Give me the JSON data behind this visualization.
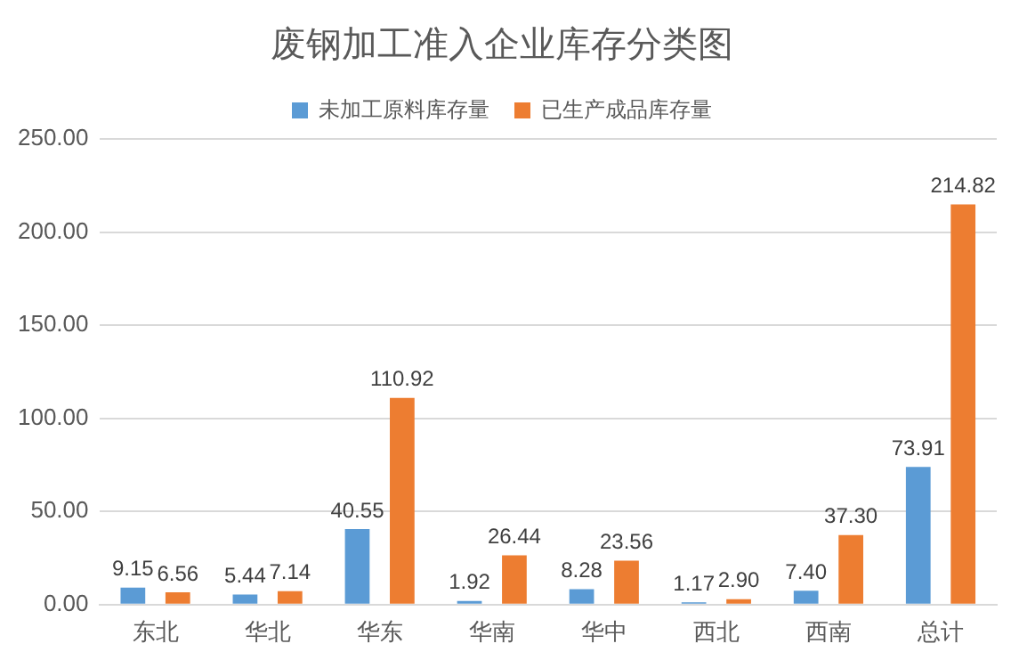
{
  "chart_data": {
    "type": "bar",
    "title": "废钢加工准入企业库存分类图",
    "categories": [
      "东北",
      "华北",
      "华东",
      "华南",
      "华中",
      "西北",
      "西南",
      "总计"
    ],
    "series": [
      {
        "name": "未加工原料库存量",
        "color": "#5b9bd5",
        "values": [
          9.15,
          5.44,
          40.55,
          1.92,
          8.28,
          1.17,
          7.4,
          73.91
        ],
        "value_labels": [
          "9.15",
          "5.44",
          "40.55",
          "1.92",
          "8.28",
          "1.17",
          "7.40",
          "73.91"
        ]
      },
      {
        "name": "已生产成品库存量",
        "color": "#ed7d31",
        "values": [
          6.56,
          7.14,
          110.92,
          26.44,
          23.56,
          2.9,
          37.3,
          214.82
        ],
        "value_labels": [
          "6.56",
          "7.14",
          "110.92",
          "26.44",
          "23.56",
          "2.90",
          "37.30",
          "214.82"
        ]
      }
    ],
    "ylim": [
      0,
      250
    ],
    "yticks": [
      {
        "value": 0,
        "label": "0.00"
      },
      {
        "value": 50,
        "label": "50.00"
      },
      {
        "value": 100,
        "label": "100.00"
      },
      {
        "value": 150,
        "label": "150.00"
      },
      {
        "value": 200,
        "label": "200.00"
      },
      {
        "value": 250,
        "label": "250.00"
      }
    ],
    "grid": "y",
    "legend": "top"
  }
}
